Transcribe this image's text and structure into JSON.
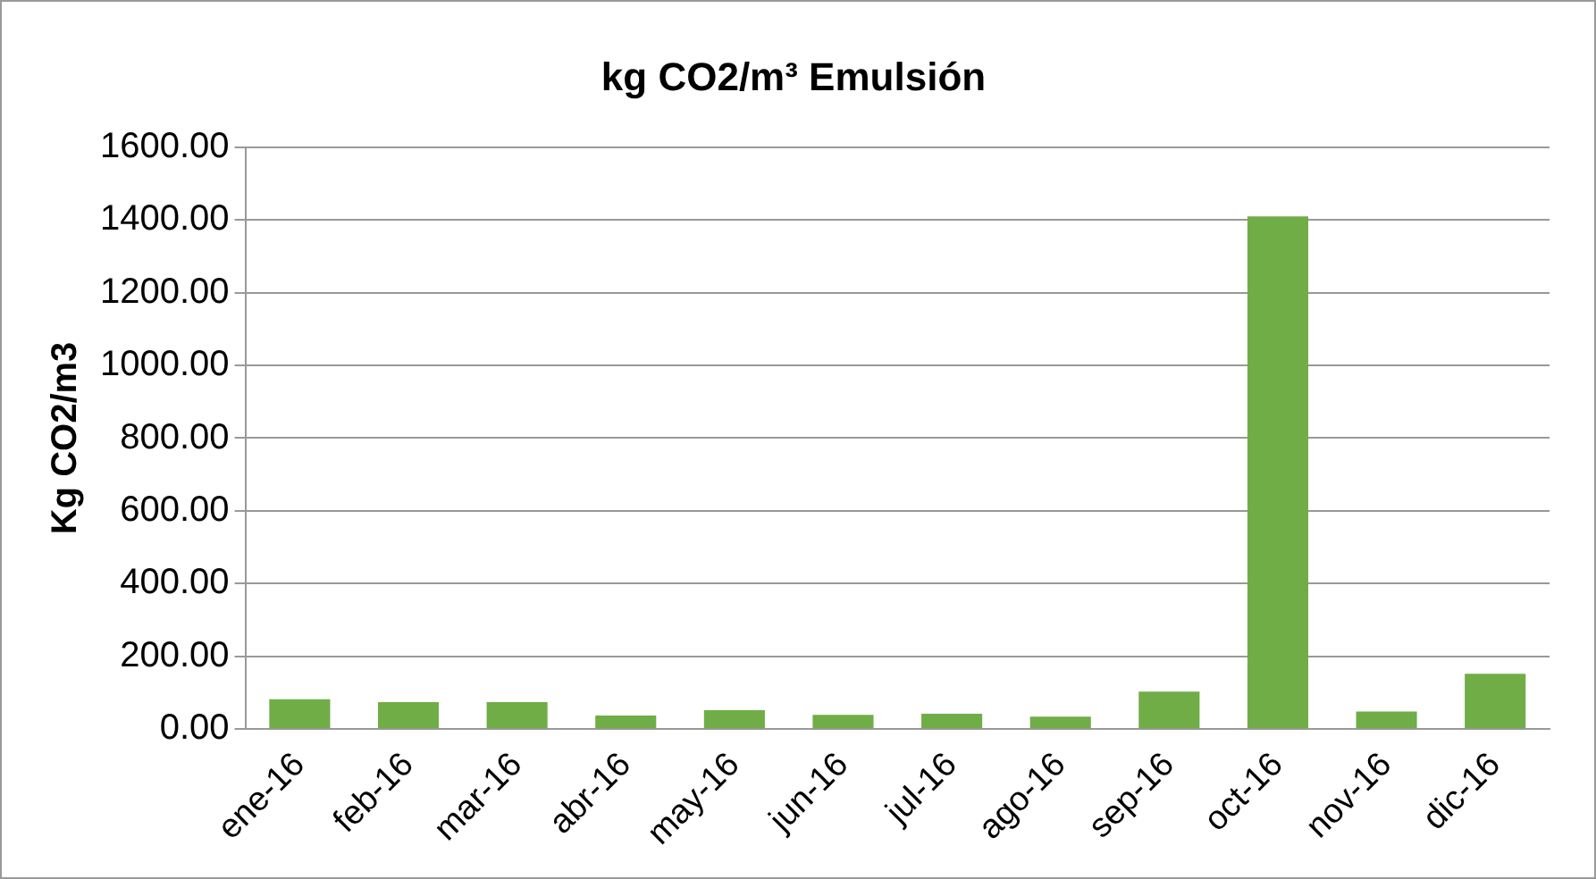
{
  "chart_data": {
    "type": "bar",
    "title": "kg CO2/m³ Emulsión",
    "ylabel": "Kg CO2/m3",
    "categories": [
      "ene-16",
      "feb-16",
      "mar-16",
      "abr-16",
      "may-16",
      "jun-16",
      "jul-16",
      "ago-16",
      "sep-16",
      "oct-16",
      "nov-16",
      "dic-16"
    ],
    "values": [
      82,
      74,
      74,
      37,
      52,
      39,
      42,
      34,
      103,
      1410,
      48,
      152
    ],
    "color": "#70ad47",
    "ylim": [
      0,
      1600
    ],
    "yticks": [
      {
        "value": 0,
        "label": "0.00"
      },
      {
        "value": 200,
        "label": "200.00"
      },
      {
        "value": 400,
        "label": "400.00"
      },
      {
        "value": 600,
        "label": "600.00"
      },
      {
        "value": 800,
        "label": "800.00"
      },
      {
        "value": 1000,
        "label": "1000.00"
      },
      {
        "value": 1200,
        "label": "1200.00"
      },
      {
        "value": 1400,
        "label": "1400.00"
      },
      {
        "value": 1600,
        "label": "1600.00"
      }
    ],
    "grid": "y"
  }
}
